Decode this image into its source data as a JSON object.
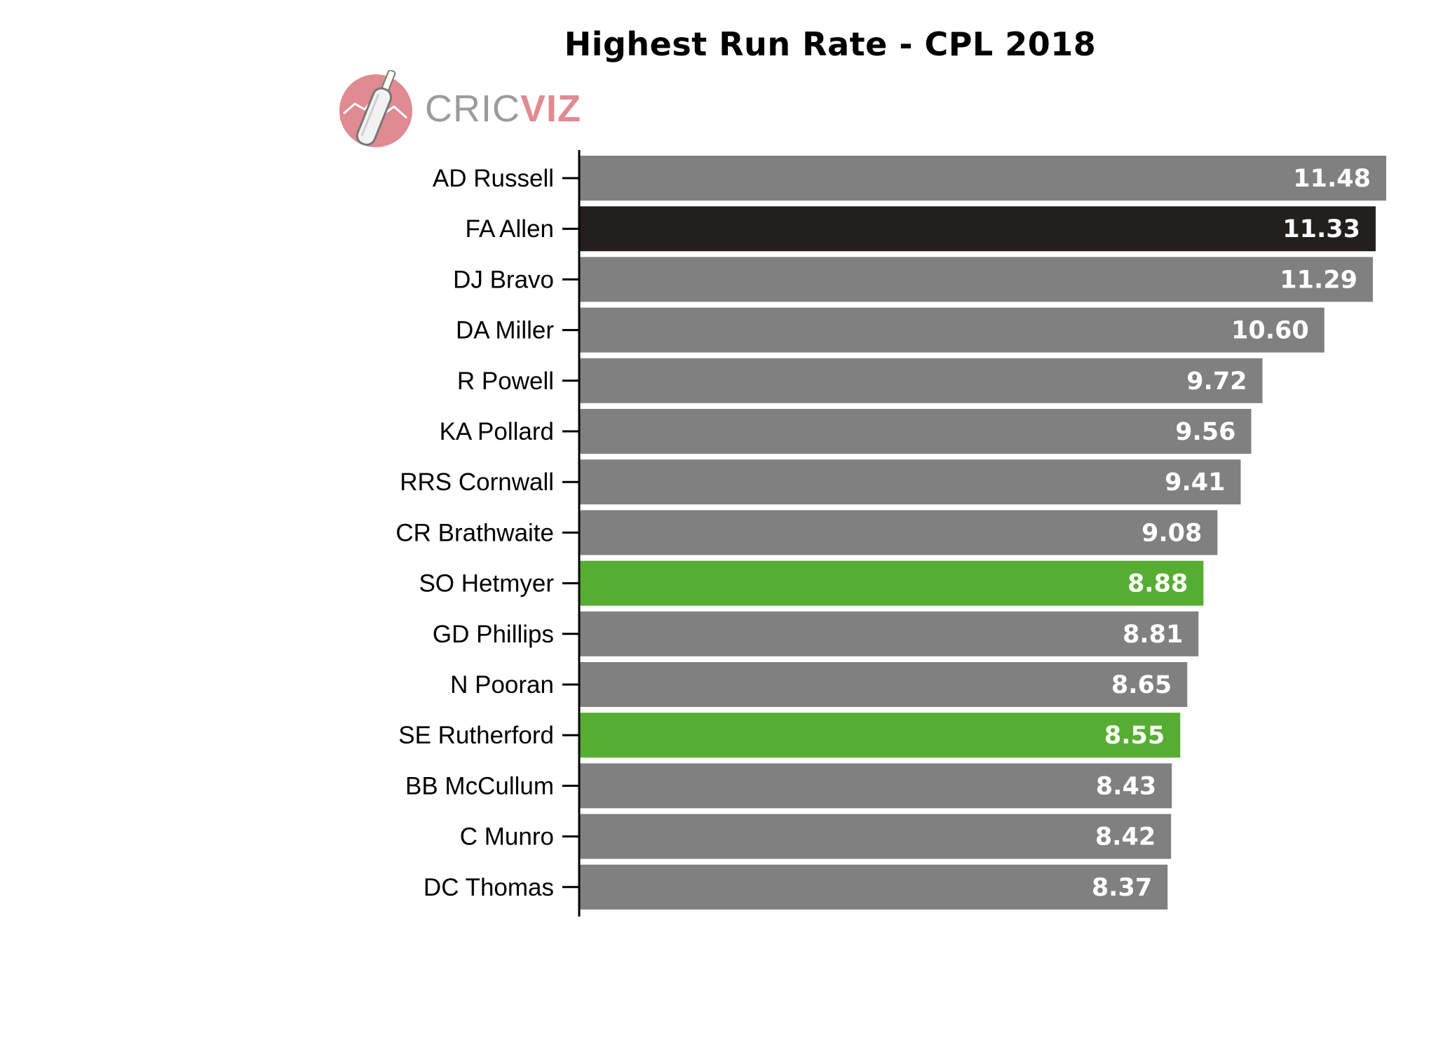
{
  "title": "Highest Run Rate - CPL 2018",
  "logo": {
    "text_part1": "CRIC",
    "text_part2": "VIZ",
    "circle_color": "#e08a91",
    "text_color_part1": "#9b9b9b",
    "text_color_part2": "#e08a91",
    "icon": "cricket-bat-icon"
  },
  "chart_data": {
    "type": "bar",
    "orientation": "horizontal",
    "title": "Highest Run Rate - CPL 2018",
    "xlabel": "",
    "ylabel": "",
    "categories": [
      "AD Russell",
      "FA Allen",
      "DJ Bravo",
      "DA Miller",
      "R Powell",
      "KA Pollard",
      "RRS Cornwall",
      "CR Brathwaite",
      "SO Hetmyer",
      "GD Phillips",
      "N Pooran",
      "SE Rutherford",
      "BB McCullum",
      "C Munro",
      "DC Thomas"
    ],
    "values": [
      11.48,
      11.33,
      11.29,
      10.6,
      9.72,
      9.56,
      9.41,
      9.08,
      8.88,
      8.81,
      8.65,
      8.55,
      8.43,
      8.42,
      8.37
    ],
    "value_labels": [
      "11.48",
      "11.33",
      "11.29",
      "10.60",
      "9.72",
      "9.56",
      "9.41",
      "9.08",
      "8.88",
      "8.81",
      "8.65",
      "8.55",
      "8.43",
      "8.42",
      "8.37"
    ],
    "bar_colors": [
      "#808080",
      "#231f1f",
      "#808080",
      "#808080",
      "#808080",
      "#808080",
      "#808080",
      "#808080",
      "#55ae31",
      "#808080",
      "#808080",
      "#55ae31",
      "#808080",
      "#808080",
      "#808080"
    ],
    "xlim": [
      0,
      11.48
    ],
    "grid": false,
    "legend": "none"
  }
}
